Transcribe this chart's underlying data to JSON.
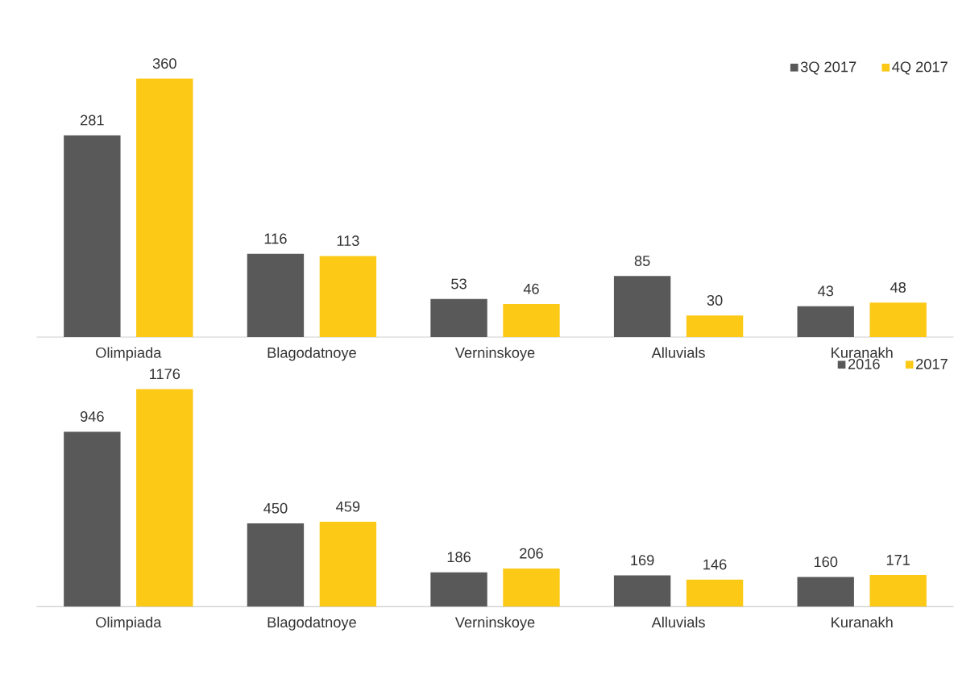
{
  "chart_data": [
    {
      "type": "bar",
      "categories": [
        "Olimpiada",
        "Blagodatnoye",
        "Verninskoye",
        "Alluvials",
        "Kuranakh"
      ],
      "data_labels": true,
      "legend": "top right",
      "series": [
        {
          "name": "3Q 2017",
          "color": "#595959",
          "values": [
            281,
            116,
            53,
            85,
            43
          ]
        },
        {
          "name": "4Q 2017",
          "color": "#fcc916",
          "values": [
            360,
            113,
            46,
            30,
            48
          ]
        }
      ]
    },
    {
      "type": "bar",
      "categories": [
        "Olimpiada",
        "Blagodatnoye",
        "Verninskoye",
        "Alluvials",
        "Kuranakh"
      ],
      "data_labels": true,
      "legend": "top right",
      "series": [
        {
          "name": "2016",
          "color": "#595959",
          "values": [
            946,
            450,
            186,
            169,
            160
          ]
        },
        {
          "name": "2017",
          "color": "#fcc916",
          "values": [
            1176,
            459,
            206,
            146,
            171
          ]
        }
      ]
    }
  ]
}
